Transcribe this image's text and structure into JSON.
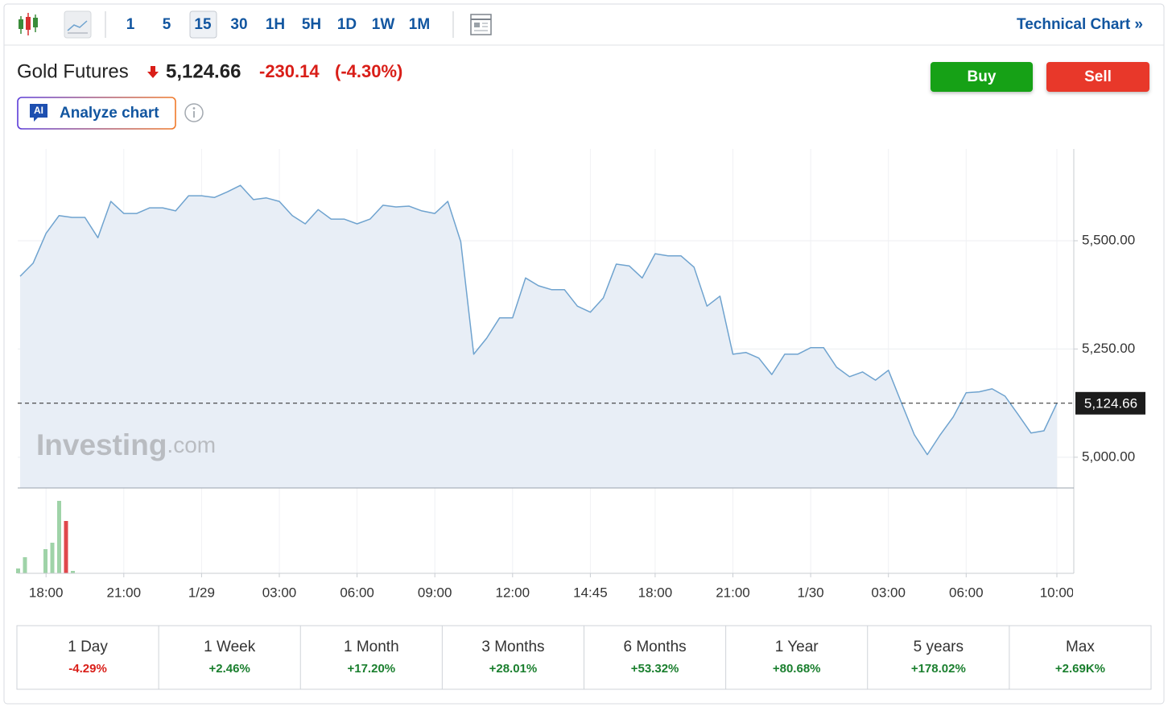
{
  "toolbar": {
    "intervals": [
      "1",
      "5",
      "15",
      "30",
      "1H",
      "5H",
      "1D",
      "1W",
      "1M"
    ],
    "active": "15",
    "technical_chart": "Technical Chart »"
  },
  "quote": {
    "name": "Gold Futures",
    "price": "5,124.66",
    "change": "-230.14",
    "change_percent": "(-4.30%)"
  },
  "ai_badge": "AI",
  "analyze_button": "Analyze chart",
  "buy_button": "Buy",
  "sell_button": "Sell",
  "watermark": {
    "brand": "Investing",
    "suffix": ".com"
  },
  "chart_data": {
    "type": "area",
    "color": "#6fa3cf",
    "fill": "#e8eef6",
    "grid": true,
    "categories": [
      null,
      null,
      "18:00",
      null,
      null,
      null,
      null,
      null,
      "21:00",
      null,
      null,
      null,
      null,
      null,
      "1/29",
      null,
      null,
      null,
      null,
      null,
      "03:00",
      null,
      null,
      null,
      null,
      null,
      "06:00",
      null,
      null,
      null,
      null,
      null,
      "09:00",
      null,
      null,
      null,
      null,
      null,
      "12:00",
      null,
      null,
      null,
      null,
      null,
      "14:45",
      null,
      null,
      null,
      null,
      "18:00",
      null,
      null,
      null,
      null,
      null,
      "21:00",
      null,
      null,
      null,
      null,
      null,
      "1/30",
      null,
      null,
      null,
      null,
      null,
      "03:00",
      null,
      null,
      null,
      null,
      null,
      "06:00",
      null,
      null,
      null,
      null,
      null,
      null,
      "10:00"
    ],
    "values": [
      5418,
      5448,
      5517,
      5558,
      5554,
      5554,
      5507,
      5591,
      5563,
      5563,
      5576,
      5576,
      5569,
      5604,
      5604,
      5600,
      5613,
      5628,
      5595,
      5599,
      5591,
      5558,
      5539,
      5572,
      5550,
      5550,
      5539,
      5550,
      5582,
      5578,
      5580,
      5569,
      5563,
      5591,
      5498,
      5238,
      5275,
      5322,
      5322,
      5414,
      5396,
      5387,
      5387,
      5349,
      5335,
      5368,
      5446,
      5442,
      5414,
      5470,
      5465,
      5465,
      5439,
      5349,
      5372,
      5238,
      5242,
      5229,
      5191,
      5238,
      5238,
      5253,
      5253,
      5208,
      5186,
      5197,
      5178,
      5201,
      5126,
      5052,
      5006,
      5052,
      5093,
      5149,
      5151,
      5158,
      5141,
      5099,
      5056,
      5061,
      5124.66
    ],
    "ylim": [
      4929,
      5712
    ],
    "yticks": [
      {
        "value": 5000,
        "label": "5,000.00"
      },
      {
        "value": 5250,
        "label": "5,250.00"
      },
      {
        "value": 5500,
        "label": "5,500.00"
      }
    ],
    "last_price": {
      "value": 5124.66,
      "label": "5,124.66"
    },
    "volume": {
      "values": [
        6,
        20,
        0,
        0,
        30,
        38,
        90,
        65,
        3
      ],
      "colors": [
        "#9fd3a8",
        "#9fd3a8",
        "#9fd3a8",
        "#9fd3a8",
        "#9fd3a8",
        "#9fd3a8",
        "#9fd3a8",
        "#e0474c",
        "#9fd3a8"
      ],
      "ylim": [
        0,
        100
      ]
    }
  },
  "periods": [
    {
      "label": "1 Day",
      "change": "-4.29%"
    },
    {
      "label": "1 Week",
      "change": "+2.46%"
    },
    {
      "label": "1 Month",
      "change": "+17.20%"
    },
    {
      "label": "3 Months",
      "change": "+28.01%"
    },
    {
      "label": "6 Months",
      "change": "+53.32%"
    },
    {
      "label": "1 Year",
      "change": "+80.68%"
    },
    {
      "label": "5 years",
      "change": "+178.02%"
    },
    {
      "label": "Max",
      "change": "+2.69K%"
    }
  ]
}
